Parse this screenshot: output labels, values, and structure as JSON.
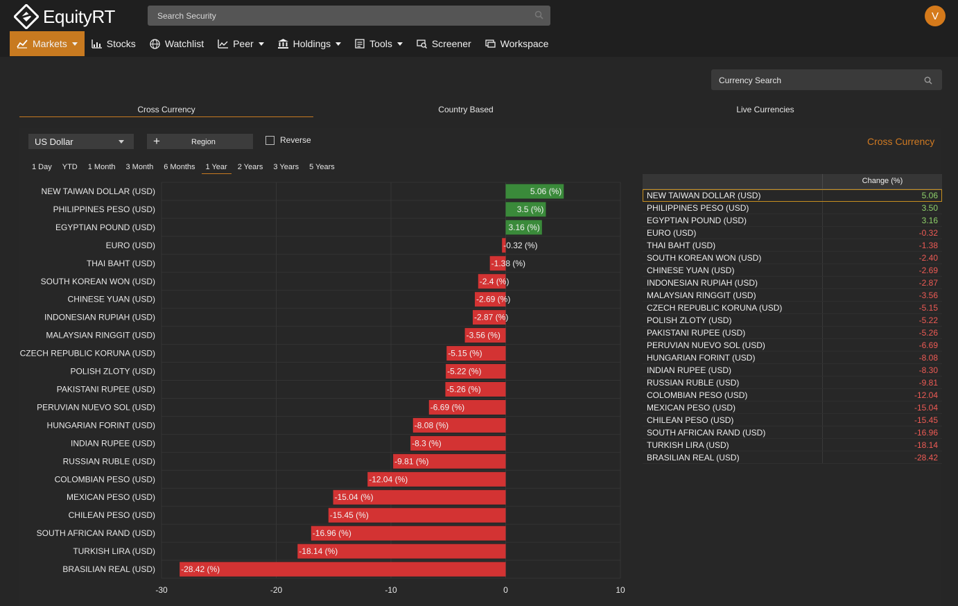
{
  "app": {
    "logo_text": "EquityRT",
    "search_placeholder": "Search Security",
    "avatar_initial": "V"
  },
  "nav": [
    {
      "label": "Markets",
      "icon": "chart-area-icon",
      "dropdown": true,
      "active": true
    },
    {
      "label": "Stocks",
      "icon": "chart-bar-icon",
      "dropdown": false
    },
    {
      "label": "Watchlist",
      "icon": "globe-icon",
      "dropdown": false
    },
    {
      "label": "Peer",
      "icon": "chart-line-icon",
      "dropdown": true
    },
    {
      "label": "Holdings",
      "icon": "building-icon",
      "dropdown": true
    },
    {
      "label": "Tools",
      "icon": "toolbox-icon",
      "dropdown": true
    },
    {
      "label": "Screener",
      "icon": "screener-icon",
      "dropdown": false
    },
    {
      "label": "Workspace",
      "icon": "workspace-icon",
      "dropdown": false
    }
  ],
  "currency_search": {
    "placeholder": "Currency Search"
  },
  "tabs": [
    {
      "label": "Cross Currency",
      "active": true
    },
    {
      "label": "Country Based",
      "active": false
    },
    {
      "label": "Live Currencies",
      "active": false
    }
  ],
  "controls": {
    "base_currency": "US Dollar",
    "region_label": "Region",
    "reverse_label": "Reverse",
    "panel_title": "Cross Currency"
  },
  "periods": [
    {
      "label": "1 Day",
      "active": false
    },
    {
      "label": "YTD",
      "active": false
    },
    {
      "label": "1 Month",
      "active": false
    },
    {
      "label": "3 Month",
      "active": false
    },
    {
      "label": "6 Months",
      "active": false
    },
    {
      "label": "1 Year",
      "active": true
    },
    {
      "label": "2 Years",
      "active": false
    },
    {
      "label": "3 Years",
      "active": false
    },
    {
      "label": "5 Years",
      "active": false
    }
  ],
  "colors": {
    "accent": "#c87a20",
    "positive_bar": "#3a8a3a",
    "negative_bar": "#d33333",
    "positive_text": "#8fd16a",
    "negative_text": "#ef5b55"
  },
  "chart_data": {
    "type": "bar",
    "orientation": "horizontal",
    "categories": [
      "NEW TAIWAN DOLLAR (USD)",
      "PHILIPPINES PESO (USD)",
      "EGYPTIAN POUND (USD)",
      "EURO (USD)",
      "THAI BAHT (USD)",
      "SOUTH KOREAN WON (USD)",
      "CHINESE YUAN (USD)",
      "INDONESIAN RUPIAH (USD)",
      "MALAYSIAN RINGGIT (USD)",
      "CZECH REPUBLIC KORUNA (USD)",
      "POLISH ZLOTY (USD)",
      "PAKISTANI RUPEE (USD)",
      "PERUVIAN NUEVO SOL (USD)",
      "HUNGARIAN FORINT (USD)",
      "INDIAN RUPEE (USD)",
      "RUSSIAN RUBLE (USD)",
      "COLOMBIAN PESO (USD)",
      "MEXICAN PESO (USD)",
      "CHILEAN PESO (USD)",
      "SOUTH AFRICAN RAND (USD)",
      "TURKISH LIRA (USD)",
      "BRASILIAN REAL (USD)"
    ],
    "values": [
      5.06,
      3.5,
      3.16,
      -0.32,
      -1.38,
      -2.4,
      -2.69,
      -2.87,
      -3.56,
      -5.15,
      -5.22,
      -5.26,
      -6.69,
      -8.08,
      -8.3,
      -9.81,
      -12.04,
      -15.04,
      -15.45,
      -16.96,
      -18.14,
      -28.42
    ],
    "bar_labels": [
      "5.06 (%)",
      "3.5 (%)",
      "3.16 (%)",
      "-0.32 (%)",
      "-1.38 (%)",
      "-2.4 (%)",
      "-2.69 (%)",
      "-2.87 (%)",
      "-3.56 (%)",
      "-5.15 (%)",
      "-5.22 (%)",
      "-5.26 (%)",
      "-6.69 (%)",
      "-8.08 (%)",
      "-8.3 (%)",
      "-9.81 (%)",
      "-12.04 (%)",
      "-15.04 (%)",
      "-15.45 (%)",
      "-16.96 (%)",
      "-18.14 (%)",
      "-28.42 (%)"
    ],
    "xlim": [
      -30,
      10
    ],
    "xticks": [
      -30,
      -20,
      -10,
      0,
      10
    ],
    "title": "",
    "xlabel": "",
    "ylabel": "",
    "grid": true,
    "legend": false
  },
  "table": {
    "header": "Change (%)",
    "rows": [
      {
        "name": "NEW TAIWAN DOLLAR (USD)",
        "value": "5.06",
        "selected": true
      },
      {
        "name": "PHILIPPINES PESO (USD)",
        "value": "3.50"
      },
      {
        "name": "EGYPTIAN POUND (USD)",
        "value": "3.16"
      },
      {
        "name": "EURO (USD)",
        "value": "-0.32"
      },
      {
        "name": "THAI BAHT (USD)",
        "value": "-1.38"
      },
      {
        "name": "SOUTH KOREAN WON (USD)",
        "value": "-2.40"
      },
      {
        "name": "CHINESE YUAN (USD)",
        "value": "-2.69"
      },
      {
        "name": "INDONESIAN RUPIAH (USD)",
        "value": "-2.87"
      },
      {
        "name": "MALAYSIAN RINGGIT (USD)",
        "value": "-3.56"
      },
      {
        "name": "CZECH REPUBLIC KORUNA (USD)",
        "value": "-5.15"
      },
      {
        "name": "POLISH ZLOTY (USD)",
        "value": "-5.22"
      },
      {
        "name": "PAKISTANI RUPEE (USD)",
        "value": "-5.26"
      },
      {
        "name": "PERUVIAN NUEVO SOL (USD)",
        "value": "-6.69"
      },
      {
        "name": "HUNGARIAN FORINT (USD)",
        "value": "-8.08"
      },
      {
        "name": "INDIAN RUPEE (USD)",
        "value": "-8.30"
      },
      {
        "name": "RUSSIAN RUBLE (USD)",
        "value": "-9.81"
      },
      {
        "name": "COLOMBIAN PESO (USD)",
        "value": "-12.04"
      },
      {
        "name": "MEXICAN PESO (USD)",
        "value": "-15.04"
      },
      {
        "name": "CHILEAN PESO (USD)",
        "value": "-15.45"
      },
      {
        "name": "SOUTH AFRICAN RAND (USD)",
        "value": "-16.96"
      },
      {
        "name": "TURKISH LIRA (USD)",
        "value": "-18.14"
      },
      {
        "name": "BRASILIAN REAL (USD)",
        "value": "-28.42"
      }
    ]
  }
}
